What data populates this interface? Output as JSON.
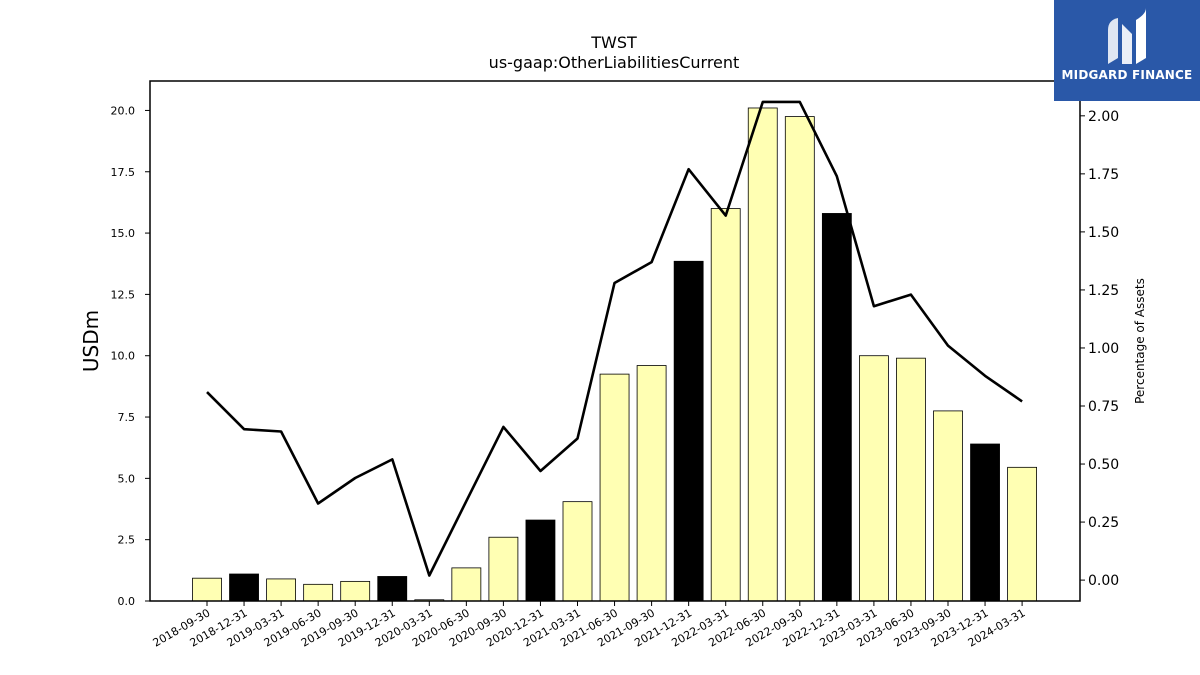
{
  "chart_data": {
    "type": "bar",
    "title": "TWST",
    "subtitle": "us-gaap:OtherLiabilitiesCurrent",
    "ylabel": "USDm",
    "y2label": "Percentage of Assets",
    "ylim": [
      0,
      21.2
    ],
    "y2lim": [
      -0.09,
      2.15
    ],
    "yticks": [
      "0.0",
      "2.5",
      "5.0",
      "7.5",
      "10.0",
      "12.5",
      "15.0",
      "17.5",
      "20.0"
    ],
    "y2ticks": [
      "0.00",
      "0.25",
      "0.50",
      "0.75",
      "1.00",
      "1.25",
      "1.50",
      "1.75",
      "2.00"
    ],
    "categories": [
      "2018-09-30",
      "2018-12-31",
      "2019-03-31",
      "2019-06-30",
      "2019-09-30",
      "2019-12-31",
      "2020-03-31",
      "2020-06-30",
      "2020-09-30",
      "2020-12-31",
      "2021-03-31",
      "2021-06-30",
      "2021-09-30",
      "2021-12-31",
      "2022-03-31",
      "2022-06-30",
      "2022-09-30",
      "2022-12-31",
      "2023-03-31",
      "2023-06-30",
      "2023-09-30",
      "2023-12-31",
      "2024-03-31"
    ],
    "series": [
      {
        "type": "bar",
        "values": [
          0.93,
          1.1,
          0.9,
          0.68,
          0.8,
          1.0,
          0.05,
          1.35,
          2.6,
          3.3,
          4.05,
          9.25,
          9.6,
          13.85,
          16.0,
          20.1,
          19.75,
          15.8,
          10.0,
          9.9,
          7.75,
          6.4,
          5.45
        ],
        "colors": [
          "#ffffb3",
          "#000000",
          "#ffffb3",
          "#ffffb3",
          "#ffffb3",
          "#000000",
          "#ffffb3",
          "#ffffb3",
          "#ffffb3",
          "#000000",
          "#ffffb3",
          "#ffffb3",
          "#ffffb3",
          "#000000",
          "#ffffb3",
          "#ffffb3",
          "#ffffb3",
          "#000000",
          "#ffffb3",
          "#ffffb3",
          "#ffffb3",
          "#000000",
          "#ffffb3"
        ]
      },
      {
        "type": "line",
        "axis": "right",
        "values": [
          0.81,
          0.65,
          0.64,
          0.33,
          0.44,
          0.52,
          0.02,
          0.34,
          0.66,
          0.47,
          0.61,
          1.28,
          1.37,
          1.77,
          1.57,
          2.06,
          2.06,
          1.74,
          1.18,
          1.23,
          1.01,
          0.88,
          0.77
        ],
        "color": "#000000"
      }
    ],
    "grid": false
  },
  "logo": {
    "text": "MIDGARD FINANCE",
    "bg_color": "#2a58a8"
  }
}
